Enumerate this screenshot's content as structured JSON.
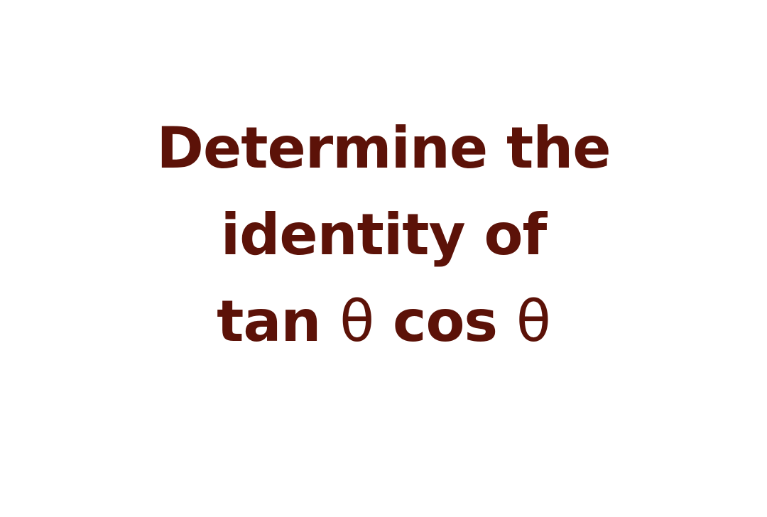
{
  "question": {
    "line1": "Determine the",
    "line2": "identity of",
    "line3": {
      "tan": "tan",
      "theta1": "θ",
      "cos": "cos",
      "theta2": "θ"
    }
  },
  "colors": {
    "text": "#5c1208",
    "background": "#ffffff"
  }
}
